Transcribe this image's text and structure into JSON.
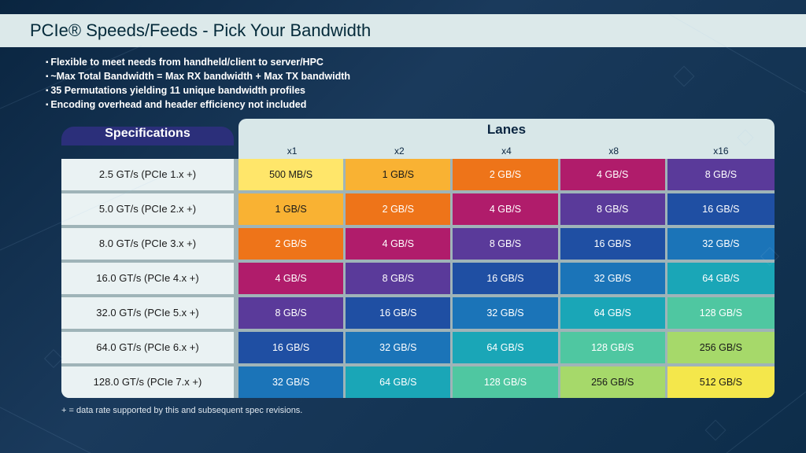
{
  "page": {
    "title": "PCIe® Speeds/Feeds - Pick Your Bandwidth",
    "title_bg": "#dce9ea",
    "title_color": "#042a3a",
    "background_gradient": [
      "#0a2540",
      "#1a3a5c",
      "#0d2d4a"
    ]
  },
  "bullets": [
    "Flexible to meet needs from handheld/client to server/HPC",
    "~Max Total Bandwidth = Max RX bandwidth + Max TX bandwidth",
    "35 Permutations yielding 11 unique bandwidth profiles",
    "Encoding overhead and header efficiency not included"
  ],
  "table": {
    "spec_header": "Specifications",
    "spec_header_bg": "#2b2f7a",
    "lanes_header": "Lanes",
    "header_bg": "#d8e7e8",
    "header_text": "#0a2540",
    "spec_cell_bg": "#eaf2f3",
    "spec_cell_text": "#1a1a1a",
    "row_gap_bg": "#9fb4b8",
    "lane_labels": [
      "x1",
      "x2",
      "x4",
      "x8",
      "x16"
    ],
    "rows": [
      {
        "spec": "2.5 GT/s (PCIe 1.x +)",
        "cells": [
          {
            "v": "500 MB/S",
            "bg": "#ffe66a",
            "fg": "#1a1a1a"
          },
          {
            "v": "1 GB/S",
            "bg": "#f9b233",
            "fg": "#1a1a1a"
          },
          {
            "v": "2 GB/S",
            "bg": "#ee7419",
            "fg": "#ffffff"
          },
          {
            "v": "4 GB/S",
            "bg": "#b01c6b",
            "fg": "#ffffff"
          },
          {
            "v": "8 GB/S",
            "bg": "#5a3a9a",
            "fg": "#ffffff"
          }
        ]
      },
      {
        "spec": "5.0 GT/s (PCIe 2.x +)",
        "cells": [
          {
            "v": "1 GB/S",
            "bg": "#f9b233",
            "fg": "#1a1a1a"
          },
          {
            "v": "2 GB/S",
            "bg": "#ee7419",
            "fg": "#ffffff"
          },
          {
            "v": "4 GB/S",
            "bg": "#b01c6b",
            "fg": "#ffffff"
          },
          {
            "v": "8 GB/S",
            "bg": "#5a3a9a",
            "fg": "#ffffff"
          },
          {
            "v": "16 GB/S",
            "bg": "#1f4fa3",
            "fg": "#ffffff"
          }
        ]
      },
      {
        "spec": "8.0 GT/s (PCIe 3.x +)",
        "cells": [
          {
            "v": "2 GB/S",
            "bg": "#ee7419",
            "fg": "#ffffff"
          },
          {
            "v": "4 GB/S",
            "bg": "#b01c6b",
            "fg": "#ffffff"
          },
          {
            "v": "8 GB/S",
            "bg": "#5a3a9a",
            "fg": "#ffffff"
          },
          {
            "v": "16 GB/S",
            "bg": "#1f4fa3",
            "fg": "#ffffff"
          },
          {
            "v": "32 GB/S",
            "bg": "#1b74b8",
            "fg": "#ffffff"
          }
        ]
      },
      {
        "spec": "16.0 GT/s (PCIe 4.x +)",
        "cells": [
          {
            "v": "4 GB/S",
            "bg": "#b01c6b",
            "fg": "#ffffff"
          },
          {
            "v": "8 GB/S",
            "bg": "#5a3a9a",
            "fg": "#ffffff"
          },
          {
            "v": "16 GB/S",
            "bg": "#1f4fa3",
            "fg": "#ffffff"
          },
          {
            "v": "32 GB/S",
            "bg": "#1b74b8",
            "fg": "#ffffff"
          },
          {
            "v": "64 GB/S",
            "bg": "#1aa6b7",
            "fg": "#ffffff"
          }
        ]
      },
      {
        "spec": "32.0 GT/s (PCIe 5.x +)",
        "cells": [
          {
            "v": "8 GB/S",
            "bg": "#5a3a9a",
            "fg": "#ffffff"
          },
          {
            "v": "16 GB/S",
            "bg": "#1f4fa3",
            "fg": "#ffffff"
          },
          {
            "v": "32 GB/S",
            "bg": "#1b74b8",
            "fg": "#ffffff"
          },
          {
            "v": "64 GB/S",
            "bg": "#1aa6b7",
            "fg": "#ffffff"
          },
          {
            "v": "128 GB/S",
            "bg": "#4fc7a1",
            "fg": "#ffffff"
          }
        ]
      },
      {
        "spec": "64.0 GT/s (PCIe 6.x +)",
        "cells": [
          {
            "v": "16 GB/S",
            "bg": "#1f4fa3",
            "fg": "#ffffff"
          },
          {
            "v": "32 GB/S",
            "bg": "#1b74b8",
            "fg": "#ffffff"
          },
          {
            "v": "64 GB/S",
            "bg": "#1aa6b7",
            "fg": "#ffffff"
          },
          {
            "v": "128 GB/S",
            "bg": "#4fc7a1",
            "fg": "#ffffff"
          },
          {
            "v": "256 GB/S",
            "bg": "#a6d96a",
            "fg": "#1a1a1a"
          }
        ]
      },
      {
        "spec": "128.0 GT/s (PCIe 7.x +)",
        "cells": [
          {
            "v": "32 GB/S",
            "bg": "#1b74b8",
            "fg": "#ffffff"
          },
          {
            "v": "64 GB/S",
            "bg": "#1aa6b7",
            "fg": "#ffffff"
          },
          {
            "v": "128 GB/S",
            "bg": "#4fc7a1",
            "fg": "#ffffff"
          },
          {
            "v": "256 GB/S",
            "bg": "#a6d96a",
            "fg": "#1a1a1a"
          },
          {
            "v": "512 GB/S",
            "bg": "#f4e74b",
            "fg": "#1a1a1a"
          }
        ]
      }
    ]
  },
  "footnote": "+ = data rate supported by this and subsequent spec revisions."
}
